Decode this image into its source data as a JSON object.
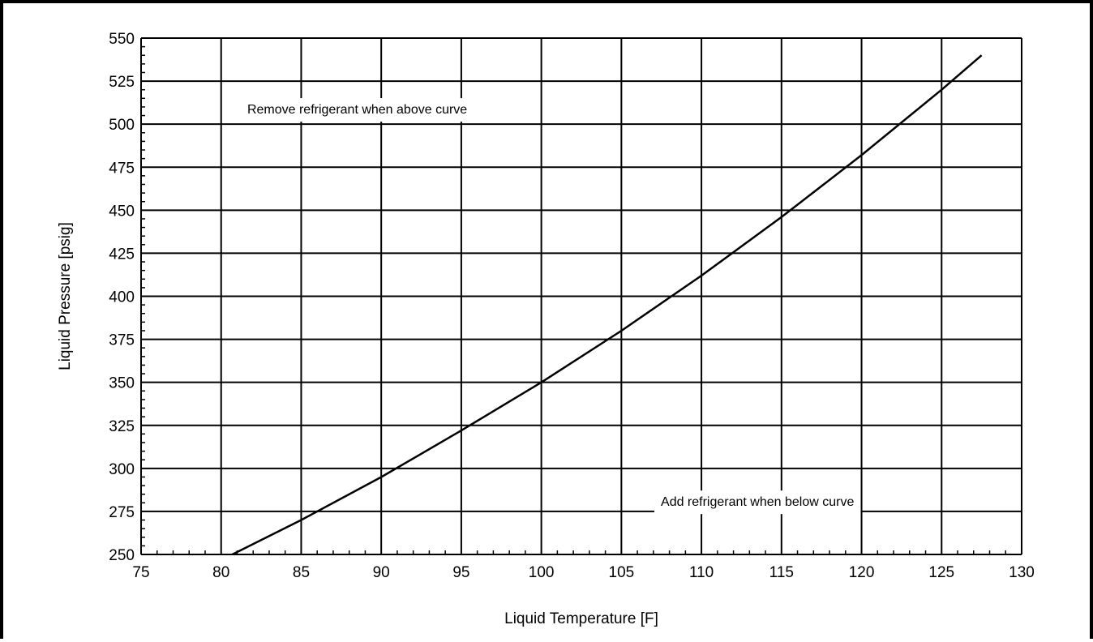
{
  "chart_data": {
    "type": "line",
    "title": "",
    "xlabel": "Liquid Temperature [F]",
    "ylabel": "Liquid Pressure [psig]",
    "xlim": [
      75,
      130
    ],
    "ylim": [
      250,
      550
    ],
    "x_ticks": [
      75,
      80,
      85,
      90,
      95,
      100,
      105,
      110,
      115,
      120,
      125,
      130
    ],
    "y_ticks": [
      250,
      275,
      300,
      325,
      350,
      375,
      400,
      425,
      450,
      475,
      500,
      525,
      550
    ],
    "grid": true,
    "legend": "none",
    "annotations": [
      {
        "text": "Remove refrigerant when above curve",
        "x": 88.5,
        "y": 509
      },
      {
        "text": "Add refrigerant when below curve",
        "x": 113.5,
        "y": 281
      }
    ],
    "series": [
      {
        "color": "#000000",
        "x": [
          80.7,
          85,
          90,
          95,
          100,
          105,
          110,
          115,
          120,
          125,
          127.5
        ],
        "y": [
          250,
          270,
          295,
          322,
          350,
          380,
          412,
          446,
          482,
          520,
          540
        ]
      }
    ]
  }
}
